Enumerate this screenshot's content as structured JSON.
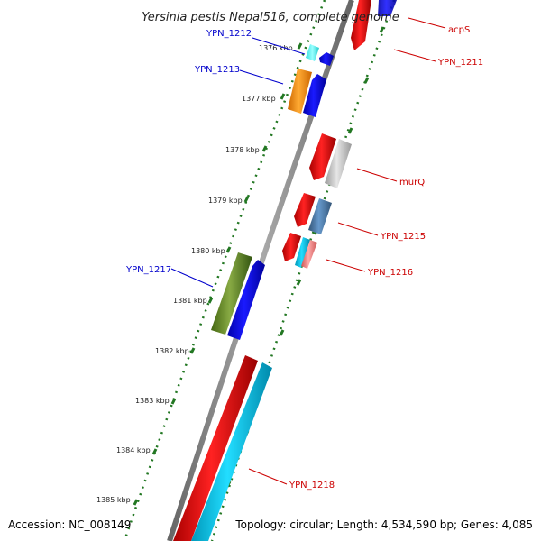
{
  "title": "Yersinia pestis Nepal516, complete genome",
  "footer": {
    "accession": "Accession: NC_008149",
    "topology": "Topology: circular; Length: 4,534,590 bp; Genes: 4,085"
  },
  "scale_labels": [
    "1376 kbp",
    "1377 kbp",
    "1378 kbp",
    "1379 kbp",
    "1380 kbp",
    "1381 kbp",
    "1382 kbp",
    "1383 kbp",
    "1384 kbp",
    "1385 kbp"
  ],
  "gene_labels": {
    "ypn_1212": "YPN_1212",
    "ypn_1213": "YPN_1213",
    "ypn_1217": "YPN_1217",
    "acps": "acpS",
    "ypn_1211": "YPN_1211",
    "murq": "murQ",
    "ypn_1215": "YPN_1215",
    "ypn_1216": "YPN_1216",
    "ypn_1218": "YPN_1218"
  },
  "colors": {
    "forward_label": "#0000cc",
    "reverse_label": "#cc0000",
    "backbone": "#888888",
    "ruler": "#227722",
    "red_gene": "#ee0000",
    "blue_gene": "#0000ee",
    "cyan_gene": "#00ccee",
    "orange_gene": "#ff8800",
    "olive_gene": "#558822",
    "gray_gene": "#bbbbbb",
    "steel_gene": "#4477aa",
    "pink_gene": "#ee7777"
  }
}
